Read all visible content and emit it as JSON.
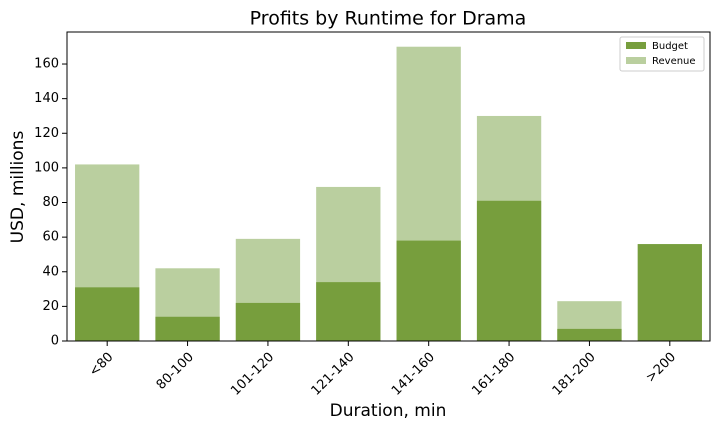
{
  "chart_data": {
    "type": "bar",
    "title": "Profits by Runtime for Drama",
    "x_label": "Duration, min",
    "y_label": "USD, millions",
    "categories": [
      "<80",
      "80-100",
      "101-120",
      "121-140",
      "141-160",
      "161-180",
      "181-200",
      ">200"
    ],
    "series": [
      {
        "name": "Budget",
        "color": "#779e3d",
        "values": [
          31,
          14,
          22,
          34,
          58,
          81,
          7,
          56
        ]
      },
      {
        "name": "Revenue",
        "color": "#bacf9f",
        "values": [
          102,
          42,
          59,
          89,
          170,
          130,
          23,
          0
        ]
      }
    ],
    "ylim": [
      0,
      178.5
    ],
    "yticks": [
      0,
      20,
      40,
      60,
      80,
      100,
      120,
      140,
      160
    ],
    "overlap": true,
    "legend": "upper right"
  }
}
